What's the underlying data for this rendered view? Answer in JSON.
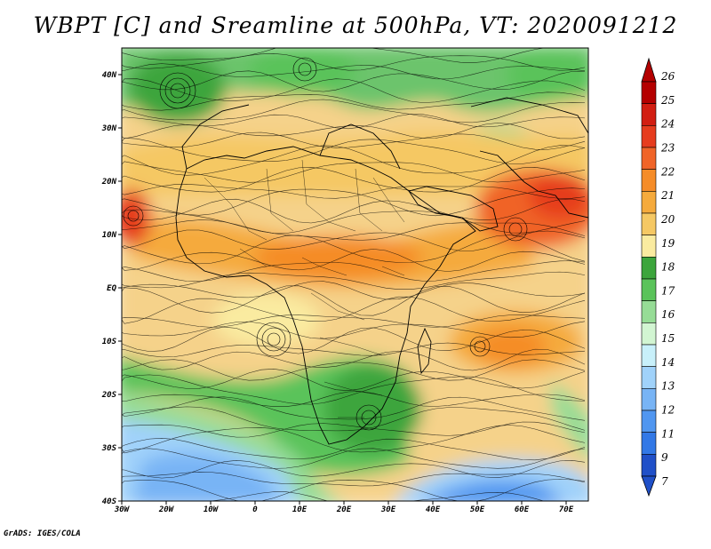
{
  "title": "WBPT [C] and Sreamline at 500hPa, VT: 2020091212",
  "credit": "GrADS: IGES/COLA",
  "map": {
    "variable": "WBPT",
    "units": "C",
    "level": "500hPa",
    "valid_time": "2020091212",
    "lon_range": [
      -30,
      75
    ],
    "lat_range": [
      -40,
      45
    ],
    "lat_ticks": [
      {
        "value": 40,
        "label": "40N"
      },
      {
        "value": 30,
        "label": "30N"
      },
      {
        "value": 20,
        "label": "20N"
      },
      {
        "value": 10,
        "label": "10N"
      },
      {
        "value": 0,
        "label": "EQ"
      },
      {
        "value": -10,
        "label": "10S"
      },
      {
        "value": -20,
        "label": "20S"
      },
      {
        "value": -30,
        "label": "30S"
      },
      {
        "value": -40,
        "label": "40S"
      }
    ],
    "lon_ticks": [
      {
        "value": -30,
        "label": "30W"
      },
      {
        "value": -20,
        "label": "20W"
      },
      {
        "value": -10,
        "label": "10W"
      },
      {
        "value": 0,
        "label": "0"
      },
      {
        "value": 10,
        "label": "10E"
      },
      {
        "value": 20,
        "label": "20E"
      },
      {
        "value": 30,
        "label": "30E"
      },
      {
        "value": 40,
        "label": "40E"
      },
      {
        "value": 50,
        "label": "50E"
      },
      {
        "value": 60,
        "label": "60E"
      },
      {
        "value": 70,
        "label": "70E"
      }
    ]
  },
  "colorbar": {
    "labels": [
      "26",
      "25",
      "24",
      "23",
      "22",
      "21",
      "20",
      "19",
      "18",
      "17",
      "16",
      "15",
      "14",
      "13",
      "12",
      "11",
      "9",
      "7"
    ],
    "colors": [
      "#b40000",
      "#d21e12",
      "#e63c1e",
      "#f06428",
      "#f58c28",
      "#f5aa3c",
      "#f5c864",
      "#faeba0",
      "#3ca53c",
      "#5ac35a",
      "#96dc96",
      "#d2f5d2",
      "#c8f0fa",
      "#a0d2fa",
      "#78b4f5",
      "#5096f0",
      "#3278e6",
      "#2050c8"
    ]
  }
}
